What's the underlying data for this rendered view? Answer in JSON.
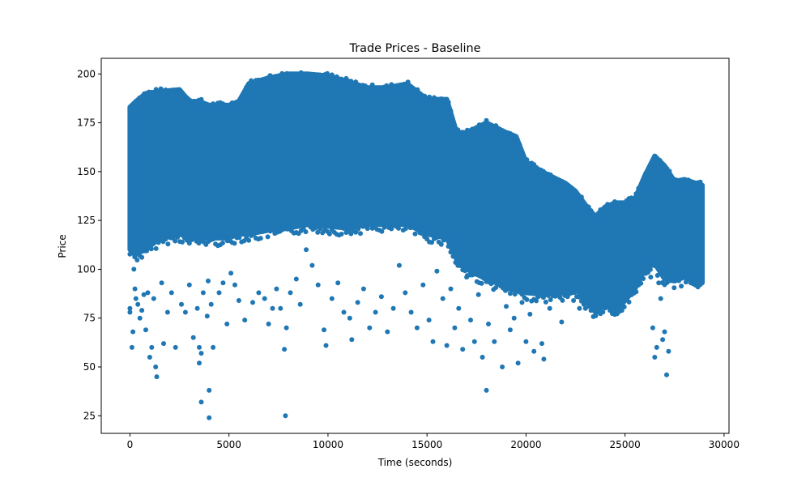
{
  "chart_data": {
    "type": "scatter",
    "title": "Trade Prices - Baseline",
    "xlabel": "Time (seconds)",
    "ylabel": "Price",
    "xlim": [
      -1450,
      30250
    ],
    "ylim": [
      16,
      208
    ],
    "xticks": [
      0,
      5000,
      10000,
      15000,
      20000,
      25000,
      30000
    ],
    "yticks": [
      25,
      50,
      75,
      100,
      125,
      150,
      175,
      200
    ],
    "grid": false,
    "legend": "none",
    "point_color": "#1f77b4",
    "band": {
      "x": [
        0,
        300,
        800,
        1500,
        2500,
        3000,
        3500,
        4000,
        5000,
        5500,
        6000,
        7000,
        8000,
        9000,
        10000,
        11000,
        12000,
        13000,
        14000,
        15000,
        16000,
        16500,
        17000,
        18000,
        19000,
        19500,
        20000,
        21000,
        22000,
        22500,
        23000,
        23500,
        24000,
        24500,
        25000,
        25500,
        26000,
        26500,
        27000,
        27500,
        28000,
        28900
      ],
      "upper": [
        183,
        186,
        190,
        191,
        192,
        186,
        186,
        184,
        184,
        186,
        195,
        198,
        200,
        200,
        199,
        196,
        193,
        193,
        195,
        187,
        187,
        170,
        170,
        175,
        170,
        168,
        155,
        149,
        144,
        140,
        133,
        127,
        132,
        134,
        134,
        136,
        148,
        158,
        153,
        145,
        146,
        143
      ],
      "lower": [
        110,
        108,
        110,
        116,
        118,
        116,
        116,
        116,
        116,
        118,
        118,
        120,
        121,
        123,
        122,
        121,
        123,
        123,
        123,
        118,
        116,
        105,
        100,
        95,
        91,
        89,
        88,
        87,
        88,
        90,
        84,
        78,
        82,
        78,
        84,
        90,
        100,
        103,
        95,
        94,
        96,
        93
      ]
    },
    "outliers": [
      [
        0,
        80
      ],
      [
        0,
        78
      ],
      [
        100,
        60
      ],
      [
        150,
        68
      ],
      [
        200,
        100
      ],
      [
        250,
        90
      ],
      [
        300,
        85
      ],
      [
        400,
        82
      ],
      [
        500,
        75
      ],
      [
        600,
        79
      ],
      [
        700,
        87
      ],
      [
        800,
        69
      ],
      [
        900,
        88
      ],
      [
        1000,
        55
      ],
      [
        1100,
        60
      ],
      [
        1200,
        85
      ],
      [
        1300,
        50
      ],
      [
        1350,
        45
      ],
      [
        1600,
        93
      ],
      [
        1700,
        62
      ],
      [
        1900,
        78
      ],
      [
        2100,
        88
      ],
      [
        2300,
        60
      ],
      [
        2600,
        82
      ],
      [
        2800,
        78
      ],
      [
        3000,
        92
      ],
      [
        3200,
        65
      ],
      [
        3400,
        80
      ],
      [
        3500,
        60
      ],
      [
        3500,
        52
      ],
      [
        3600,
        57
      ],
      [
        3600,
        32
      ],
      [
        3700,
        88
      ],
      [
        3900,
        76
      ],
      [
        3950,
        94
      ],
      [
        4000,
        38
      ],
      [
        4000,
        24
      ],
      [
        4100,
        82
      ],
      [
        4200,
        60
      ],
      [
        4500,
        88
      ],
      [
        4700,
        93
      ],
      [
        4900,
        72
      ],
      [
        5100,
        98
      ],
      [
        5300,
        92
      ],
      [
        5500,
        84
      ],
      [
        5800,
        74
      ],
      [
        6200,
        83
      ],
      [
        6500,
        88
      ],
      [
        6800,
        85
      ],
      [
        7000,
        72
      ],
      [
        7200,
        80
      ],
      [
        7400,
        90
      ],
      [
        7600,
        80
      ],
      [
        7800,
        59
      ],
      [
        7850,
        25
      ],
      [
        7900,
        70
      ],
      [
        8100,
        88
      ],
      [
        8400,
        95
      ],
      [
        8600,
        82
      ],
      [
        8900,
        110
      ],
      [
        9200,
        102
      ],
      [
        9500,
        92
      ],
      [
        9800,
        69
      ],
      [
        9900,
        61
      ],
      [
        10200,
        85
      ],
      [
        10500,
        93
      ],
      [
        10800,
        78
      ],
      [
        11100,
        75
      ],
      [
        11200,
        64
      ],
      [
        11500,
        83
      ],
      [
        11800,
        90
      ],
      [
        12100,
        70
      ],
      [
        12400,
        78
      ],
      [
        12700,
        86
      ],
      [
        13000,
        68
      ],
      [
        13300,
        80
      ],
      [
        13600,
        102
      ],
      [
        13900,
        88
      ],
      [
        14200,
        78
      ],
      [
        14500,
        70
      ],
      [
        14800,
        92
      ],
      [
        15100,
        74
      ],
      [
        15300,
        63
      ],
      [
        15500,
        99
      ],
      [
        15800,
        85
      ],
      [
        16000,
        61
      ],
      [
        16200,
        90
      ],
      [
        16400,
        70
      ],
      [
        16600,
        80
      ],
      [
        16800,
        59
      ],
      [
        17000,
        96
      ],
      [
        17200,
        74
      ],
      [
        17400,
        63
      ],
      [
        17600,
        87
      ],
      [
        17800,
        55
      ],
      [
        18000,
        38
      ],
      [
        18100,
        72
      ],
      [
        18400,
        63
      ],
      [
        18600,
        97
      ],
      [
        18800,
        50
      ],
      [
        19000,
        81
      ],
      [
        19200,
        69
      ],
      [
        19400,
        75
      ],
      [
        19600,
        52
      ],
      [
        19800,
        83
      ],
      [
        20000,
        63
      ],
      [
        20200,
        77
      ],
      [
        20400,
        58
      ],
      [
        20600,
        86
      ],
      [
        20800,
        62
      ],
      [
        20900,
        54
      ],
      [
        21200,
        80
      ],
      [
        21500,
        88
      ],
      [
        21800,
        73
      ],
      [
        22100,
        86
      ],
      [
        22400,
        84
      ],
      [
        22700,
        80
      ],
      [
        23000,
        80
      ],
      [
        26300,
        96
      ],
      [
        26400,
        70
      ],
      [
        26500,
        55
      ],
      [
        26600,
        60
      ],
      [
        26700,
        93
      ],
      [
        26800,
        85
      ],
      [
        26900,
        64
      ],
      [
        27000,
        68
      ],
      [
        27100,
        46
      ],
      [
        27200,
        58
      ],
      [
        27400,
        100
      ]
    ]
  }
}
